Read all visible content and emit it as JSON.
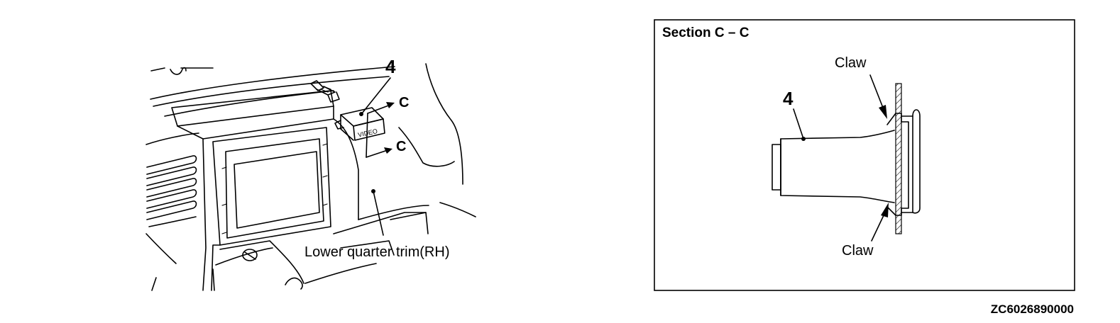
{
  "left_view": {
    "part_number": "4",
    "section_marker_top": "C",
    "section_marker_bottom": "C",
    "trim_label": "Lower quarter trim(RH)",
    "jack_face_text": "VIDEO"
  },
  "section_view": {
    "title": "Section C – C",
    "part_number": "4",
    "claw_top_label": "Claw",
    "claw_bottom_label": "Claw"
  },
  "figure_code": "ZC6026890000",
  "colors": {
    "line": "#000000",
    "background": "#ffffff"
  }
}
